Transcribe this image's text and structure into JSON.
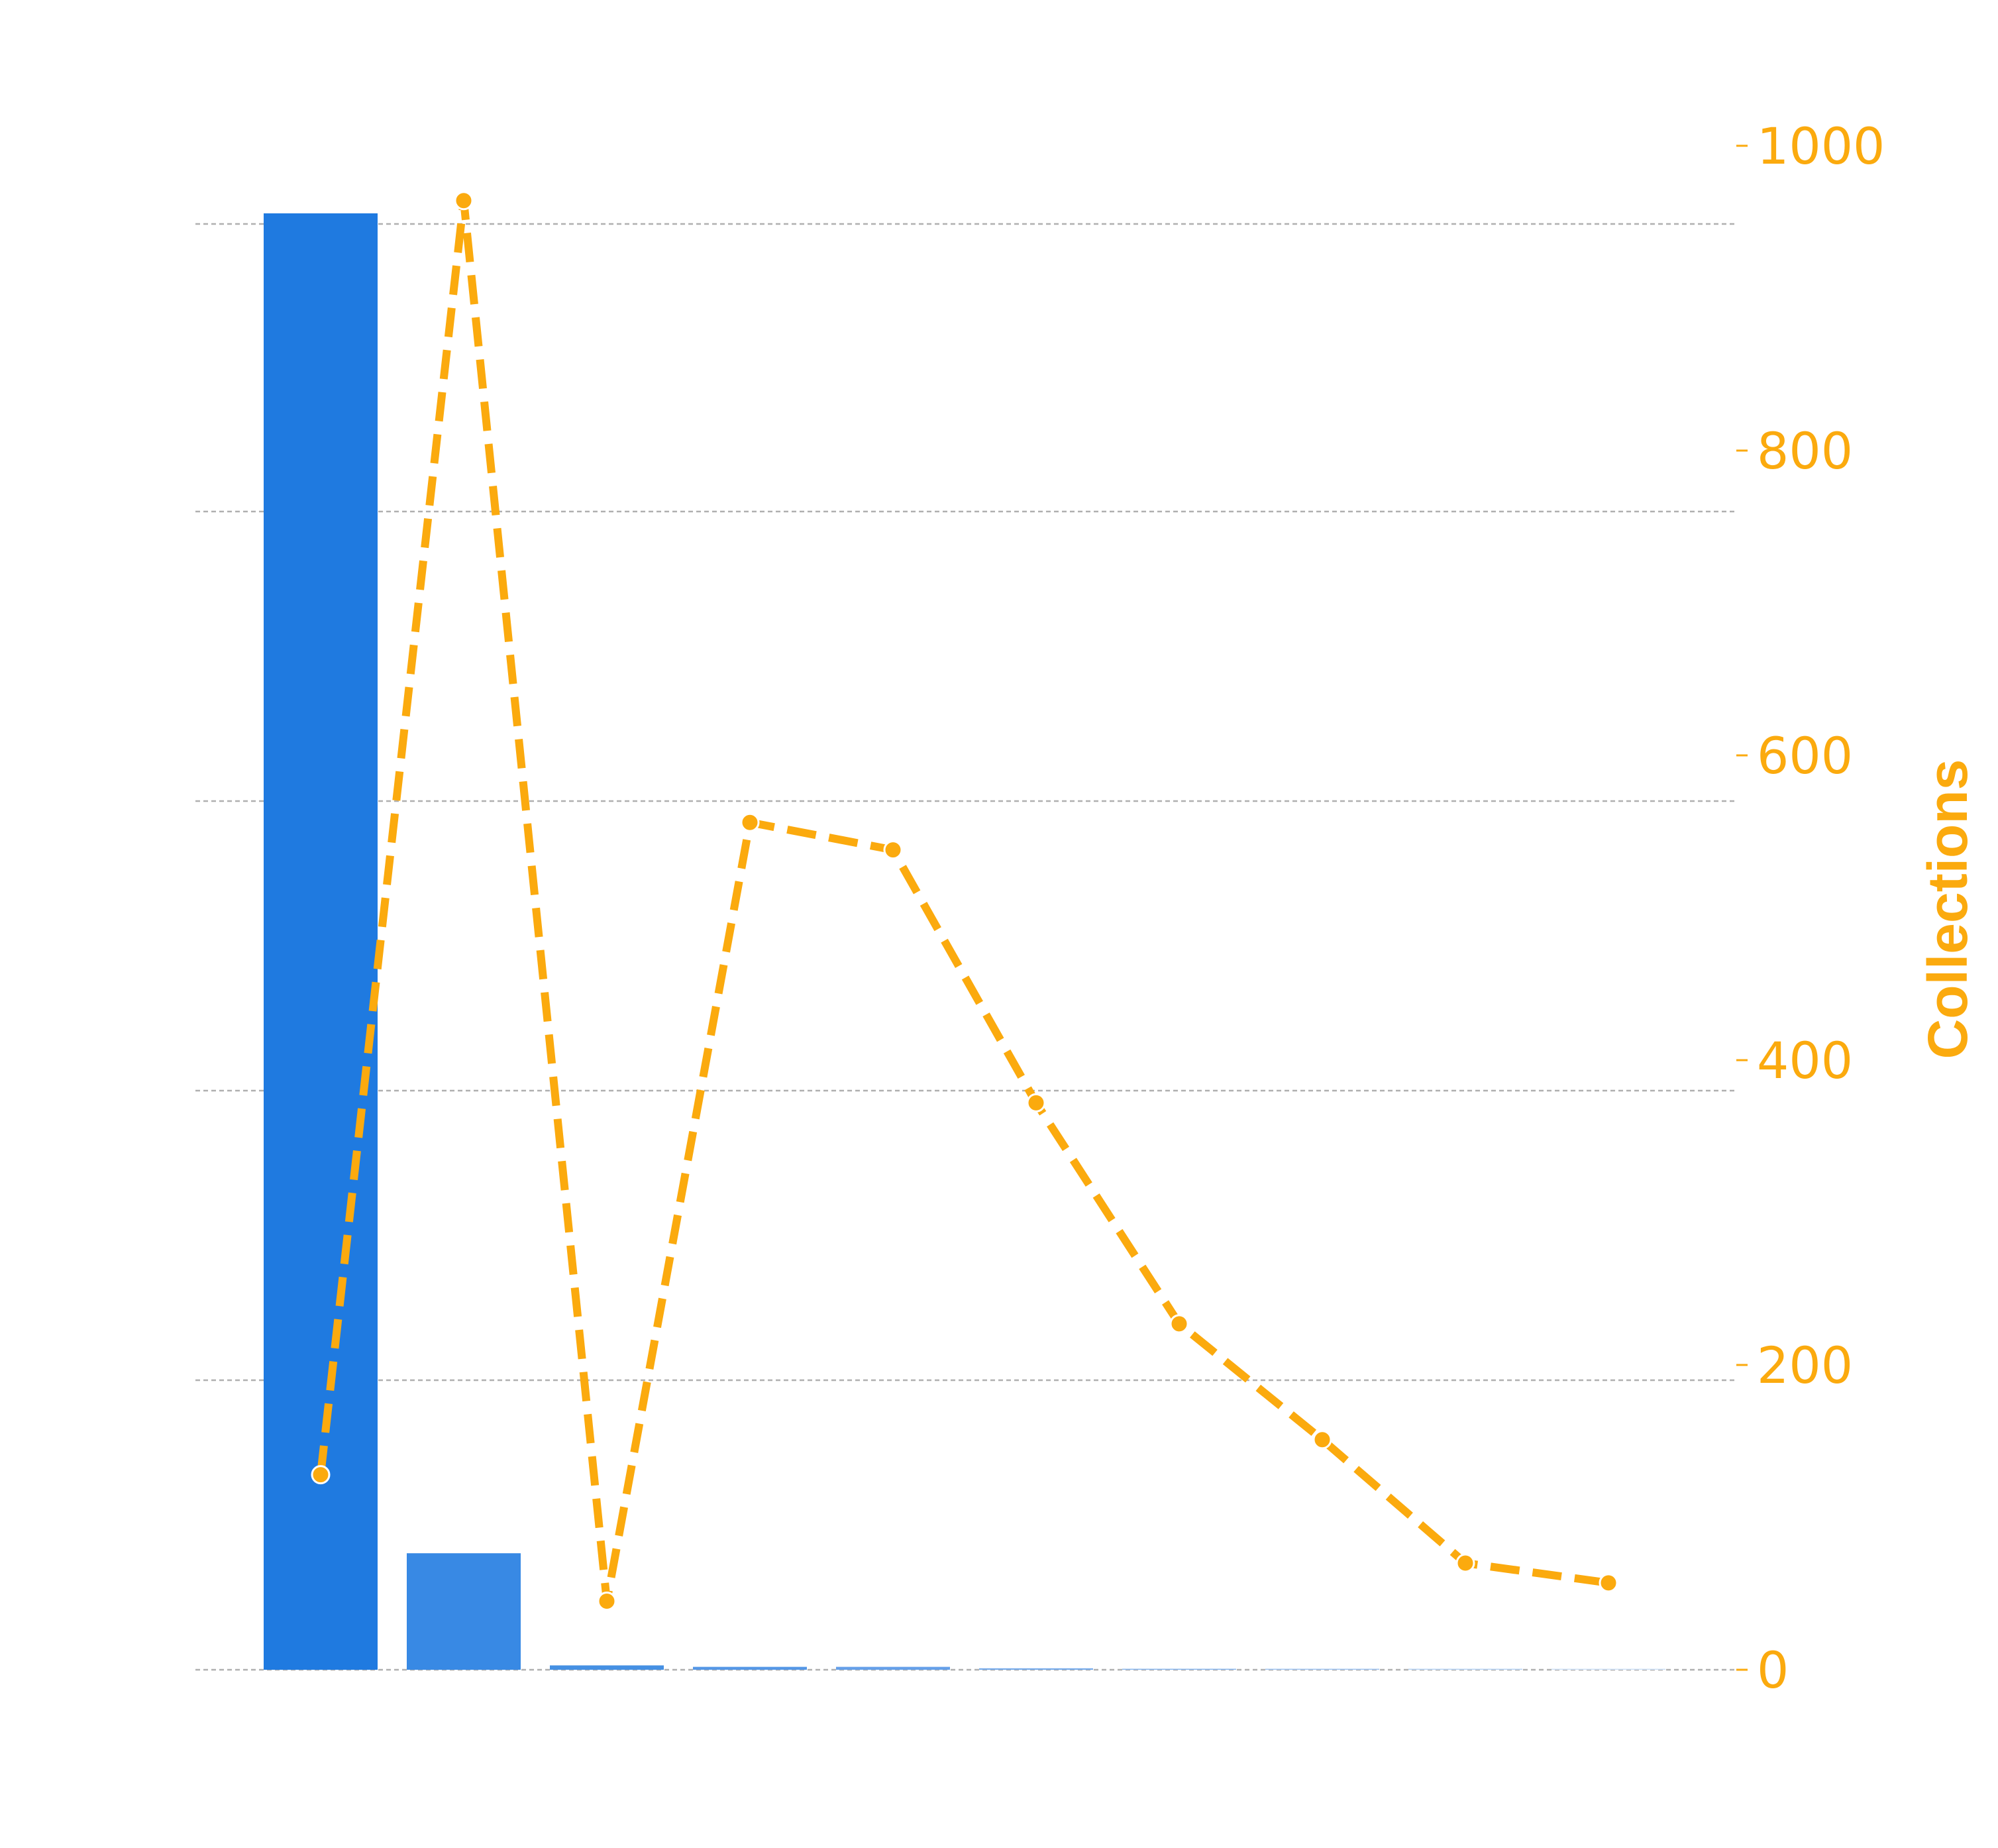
{
  "chart_data": {
    "type": "bar+line",
    "categories": [
      "",
      "",
      "",
      "",
      "",
      "",
      "",
      "",
      "",
      ""
    ],
    "series": [
      {
        "type": "bar",
        "axis": "left",
        "values": [
          1000,
          80,
          3,
          2,
          2,
          1,
          0.5,
          0.4,
          0.3,
          0.2
        ]
      },
      {
        "type": "line",
        "axis": "right",
        "style": "dashed",
        "markers": true,
        "values": [
          128,
          964,
          45,
          556,
          538,
          372,
          227,
          151,
          70,
          57
        ]
      }
    ],
    "bar_colors": [
      "#1f7ae0",
      "#3889e4",
      "#4590e3",
      "#5597e6",
      "#65a0e9",
      "#77abeb",
      "#8bb7ee",
      "#a0c4f1",
      "#b7d3f4",
      "#cfe1f7"
    ],
    "line_color": "#fbaa0e",
    "left_axis": {
      "ylim": [
        0,
        1000
      ],
      "gridlines": [
        0,
        200,
        400,
        600,
        800,
        1000
      ],
      "tick_labels_visible": false
    },
    "right_axis": {
      "ylabel": "Collections",
      "ylim": [
        0,
        1000
      ],
      "ticks": [
        0,
        200,
        400,
        600,
        800,
        1000
      ],
      "tick_labels": [
        "0",
        "200",
        "400",
        "600",
        "800",
        "1000"
      ],
      "color": "#fbaa0e"
    },
    "grid": true,
    "grid_color": "#b0b0b0"
  }
}
